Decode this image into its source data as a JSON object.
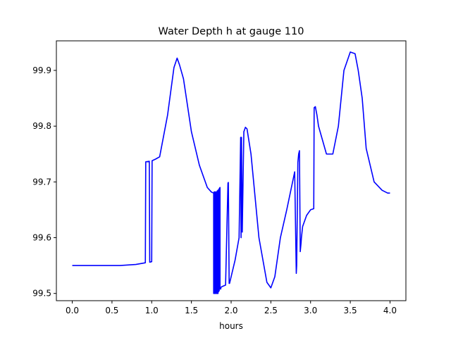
{
  "chart_data": {
    "type": "line",
    "title": "Water Depth h at gauge 110",
    "xlabel": "hours",
    "ylabel": "",
    "xlim": [
      -0.2,
      4.2
    ],
    "ylim": [
      99.487,
      99.953
    ],
    "xticks": [
      0.0,
      0.5,
      1.0,
      1.5,
      2.0,
      2.5,
      3.0,
      3.5,
      4.0
    ],
    "xtick_labels": [
      "0.0",
      "0.5",
      "1.0",
      "1.5",
      "2.0",
      "2.5",
      "3.0",
      "3.5",
      "4.0"
    ],
    "yticks": [
      99.5,
      99.6,
      99.7,
      99.8,
      99.9
    ],
    "ytick_labels": [
      "99.5",
      "99.6",
      "99.7",
      "99.8",
      "99.9"
    ],
    "grid": false,
    "series": [
      {
        "color": "#0000ff",
        "x": [
          0.0,
          0.3,
          0.6,
          0.8,
          0.92,
          0.925,
          0.97,
          0.975,
          1.0,
          1.005,
          1.05,
          1.1,
          1.2,
          1.28,
          1.32,
          1.35,
          1.4,
          1.5,
          1.6,
          1.7,
          1.75,
          1.78,
          1.78,
          1.785,
          1.785,
          1.79,
          1.79,
          1.795,
          1.795,
          1.8,
          1.8,
          1.805,
          1.805,
          1.81,
          1.81,
          1.815,
          1.815,
          1.82,
          1.82,
          1.825,
          1.825,
          1.83,
          1.83,
          1.835,
          1.835,
          1.84,
          1.84,
          1.85,
          1.85,
          1.86,
          1.86,
          1.87,
          1.87,
          1.88,
          1.88,
          1.93,
          1.96,
          1.965,
          1.975,
          1.98,
          2.0,
          2.05,
          2.1,
          2.12,
          2.125,
          2.13,
          2.14,
          2.16,
          2.18,
          2.2,
          2.25,
          2.35,
          2.45,
          2.5,
          2.55,
          2.62,
          2.7,
          2.8,
          2.82,
          2.825,
          2.84,
          2.85,
          2.86,
          2.87,
          2.88,
          2.885,
          2.9,
          2.95,
          3.0,
          3.04,
          3.045,
          3.06,
          3.08,
          3.1,
          3.2,
          3.28,
          3.35,
          3.42,
          3.5,
          3.56,
          3.6,
          3.65,
          3.7,
          3.8,
          3.9,
          3.97,
          4.0
        ],
        "y": [
          99.55,
          99.55,
          99.55,
          99.552,
          99.555,
          99.736,
          99.737,
          99.556,
          99.557,
          99.738,
          99.741,
          99.745,
          99.82,
          99.905,
          99.922,
          99.91,
          99.885,
          99.79,
          99.73,
          99.69,
          99.682,
          99.68,
          99.5,
          99.5,
          99.682,
          99.682,
          99.5,
          99.5,
          99.682,
          99.682,
          99.5,
          99.5,
          99.682,
          99.682,
          99.5,
          99.5,
          99.682,
          99.682,
          99.5,
          99.5,
          99.684,
          99.684,
          99.5,
          99.5,
          99.685,
          99.686,
          99.503,
          99.505,
          99.688,
          99.69,
          99.508,
          99.508,
          99.51,
          99.512,
          99.512,
          99.515,
          99.698,
          99.699,
          99.518,
          99.518,
          99.53,
          99.56,
          99.6,
          99.78,
          99.6,
          99.78,
          99.61,
          99.79,
          99.798,
          99.795,
          99.75,
          99.6,
          99.52,
          99.51,
          99.53,
          99.6,
          99.65,
          99.718,
          99.536,
          99.55,
          99.735,
          99.75,
          99.756,
          99.575,
          99.59,
          99.6,
          99.62,
          99.64,
          99.65,
          99.652,
          99.833,
          99.835,
          99.82,
          99.8,
          99.75,
          99.75,
          99.8,
          99.9,
          99.933,
          99.93,
          99.9,
          99.85,
          99.76,
          99.7,
          99.685,
          99.68,
          99.68
        ]
      }
    ]
  }
}
